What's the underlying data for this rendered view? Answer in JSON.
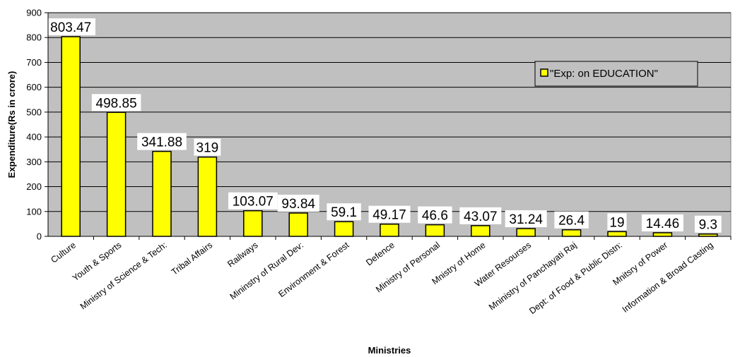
{
  "chart_data": {
    "type": "bar",
    "categories": [
      "Culture",
      "Youth & Sports",
      "Ministry of Science & Tech:",
      "Tribal Affairs",
      "Railways",
      "Mininstry of Rural Dev:",
      "Environment & Forest",
      "Defence",
      "Ministry of Personal",
      "Mnistry of Home",
      "Water Resourses",
      "Mninistry of Panchayati Raj",
      "Dept: of Food & Public Distn:",
      "Mnitsry of Power",
      "Information & Broad Casting"
    ],
    "series": [
      {
        "name": "\"Exp: on EDUCATION\"",
        "values": [
          803.47,
          498.85,
          341.88,
          319,
          103.07,
          93.84,
          59.1,
          49.17,
          46.6,
          43.07,
          31.24,
          26.4,
          19,
          14.46,
          9.3
        ],
        "labels": [
          "803.47",
          "498.85",
          "341.88",
          "319",
          "103.07",
          "93.84",
          "59.1",
          "49.17",
          "46.6",
          "43.07",
          "31.24",
          "26.4",
          "19",
          "14.46",
          "9.3"
        ],
        "color": "#ffff00"
      }
    ],
    "xlabel": "Ministries",
    "ylabel": "Expenditure(Rs in crore)",
    "ylim": [
      0,
      900
    ],
    "yticks": [
      "0",
      "100",
      "200",
      "300",
      "400",
      "500",
      "600",
      "700",
      "800",
      "900"
    ],
    "grid": true,
    "plot_background": "#c0c0c0",
    "legend_position": "top-right"
  }
}
